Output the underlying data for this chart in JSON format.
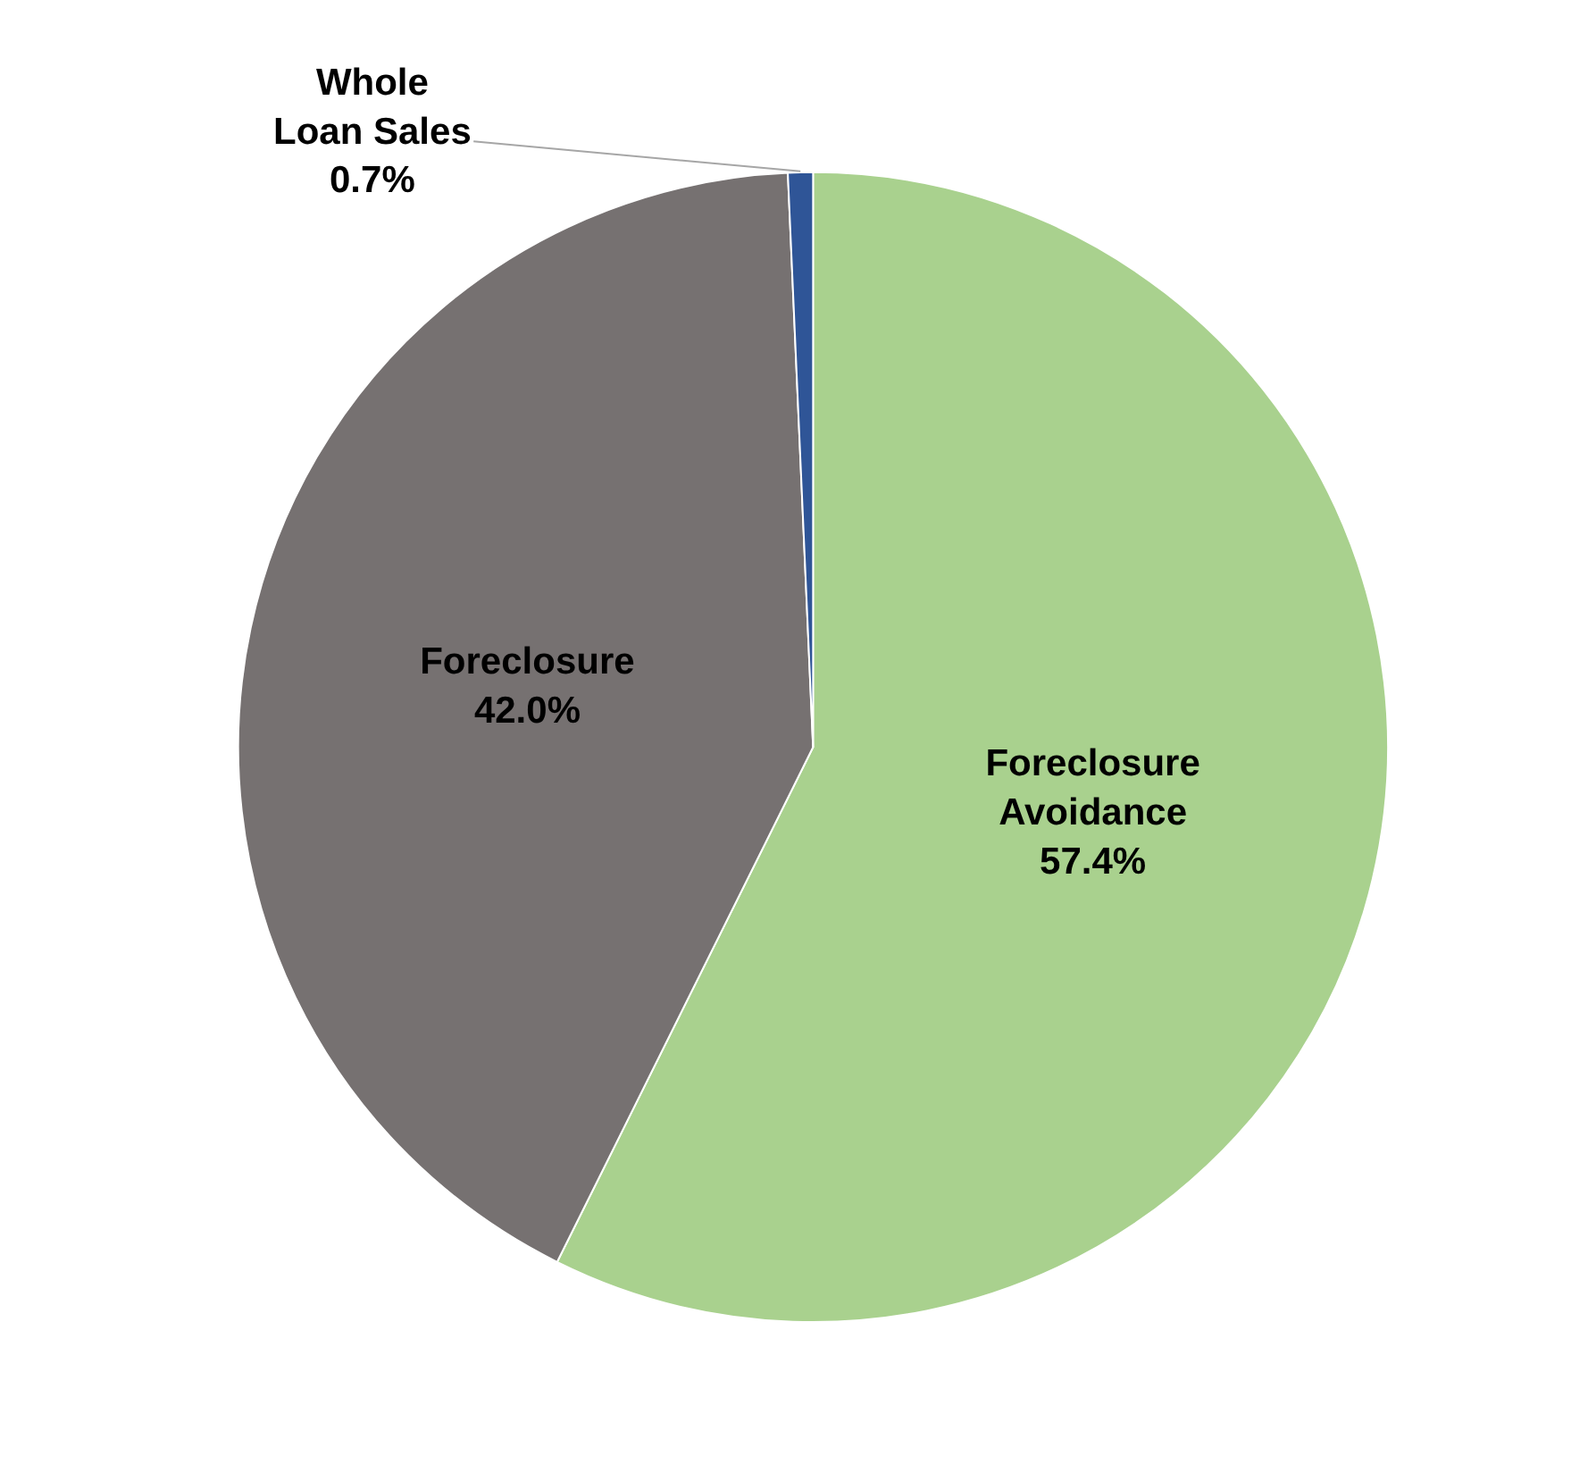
{
  "chart_data": {
    "type": "pie",
    "categories": [
      "Foreclosure Avoidance",
      "Foreclosure",
      "Whole Loan Sales"
    ],
    "values": [
      57.4,
      42.0,
      0.7
    ],
    "colors": [
      "#a9d18e",
      "#767171",
      "#2f5597"
    ],
    "value_labels": [
      "57.4%",
      "42.0%",
      "0.7%"
    ],
    "legend": false
  }
}
